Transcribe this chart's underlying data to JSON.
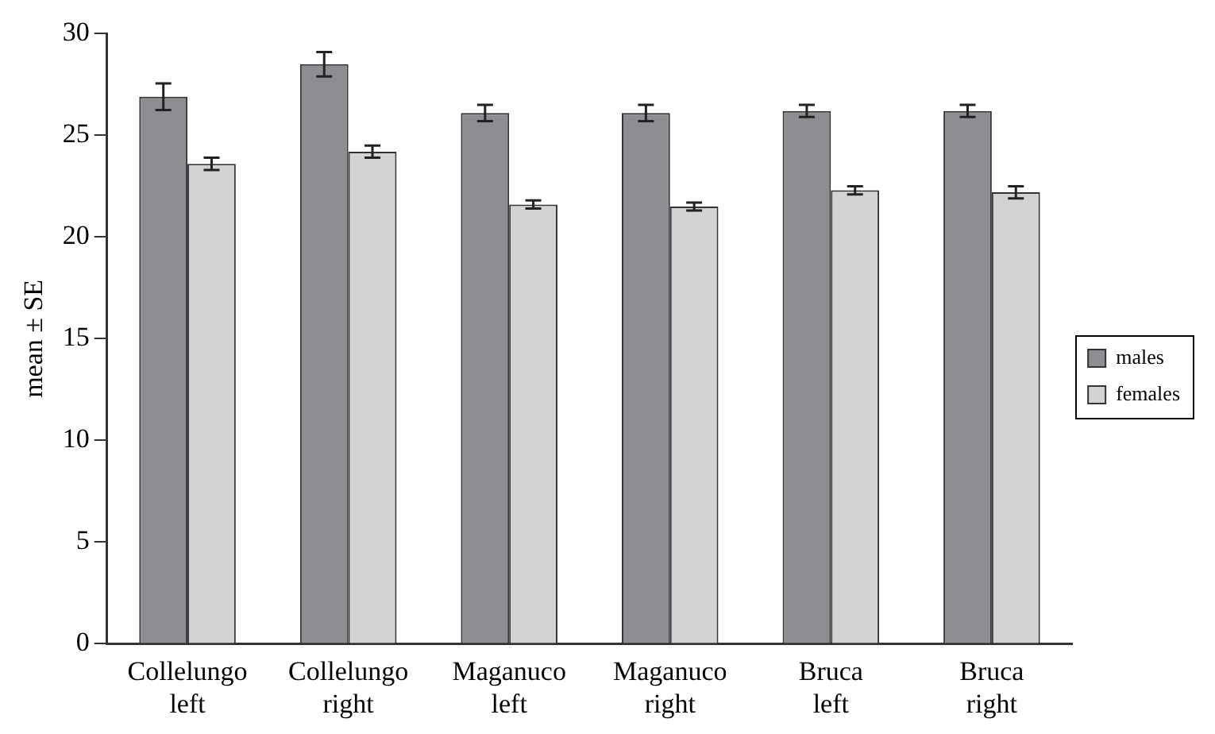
{
  "chart_data": {
    "type": "bar",
    "ylabel": "mean ± SE",
    "categories": [
      "Collelungo left",
      "Collelungo right",
      "Maganuco left",
      "Maganuco right",
      "Bruca left",
      "Bruca right"
    ],
    "series": [
      {
        "name": "males",
        "color": "#8e8e92",
        "values": [
          26.9,
          28.5,
          26.1,
          26.1,
          26.2,
          26.2
        ],
        "errors": [
          0.65,
          0.6,
          0.4,
          0.4,
          0.3,
          0.3
        ]
      },
      {
        "name": "females",
        "color": "#d2d3d5",
        "values": [
          23.6,
          24.2,
          21.6,
          21.5,
          22.3,
          22.2
        ],
        "errors": [
          0.3,
          0.3,
          0.2,
          0.2,
          0.2,
          0.3
        ]
      }
    ],
    "ylim": [
      0,
      30
    ],
    "yticks": [
      0,
      5,
      10,
      15,
      20,
      25,
      30
    ],
    "grid": false,
    "legend": "right"
  }
}
